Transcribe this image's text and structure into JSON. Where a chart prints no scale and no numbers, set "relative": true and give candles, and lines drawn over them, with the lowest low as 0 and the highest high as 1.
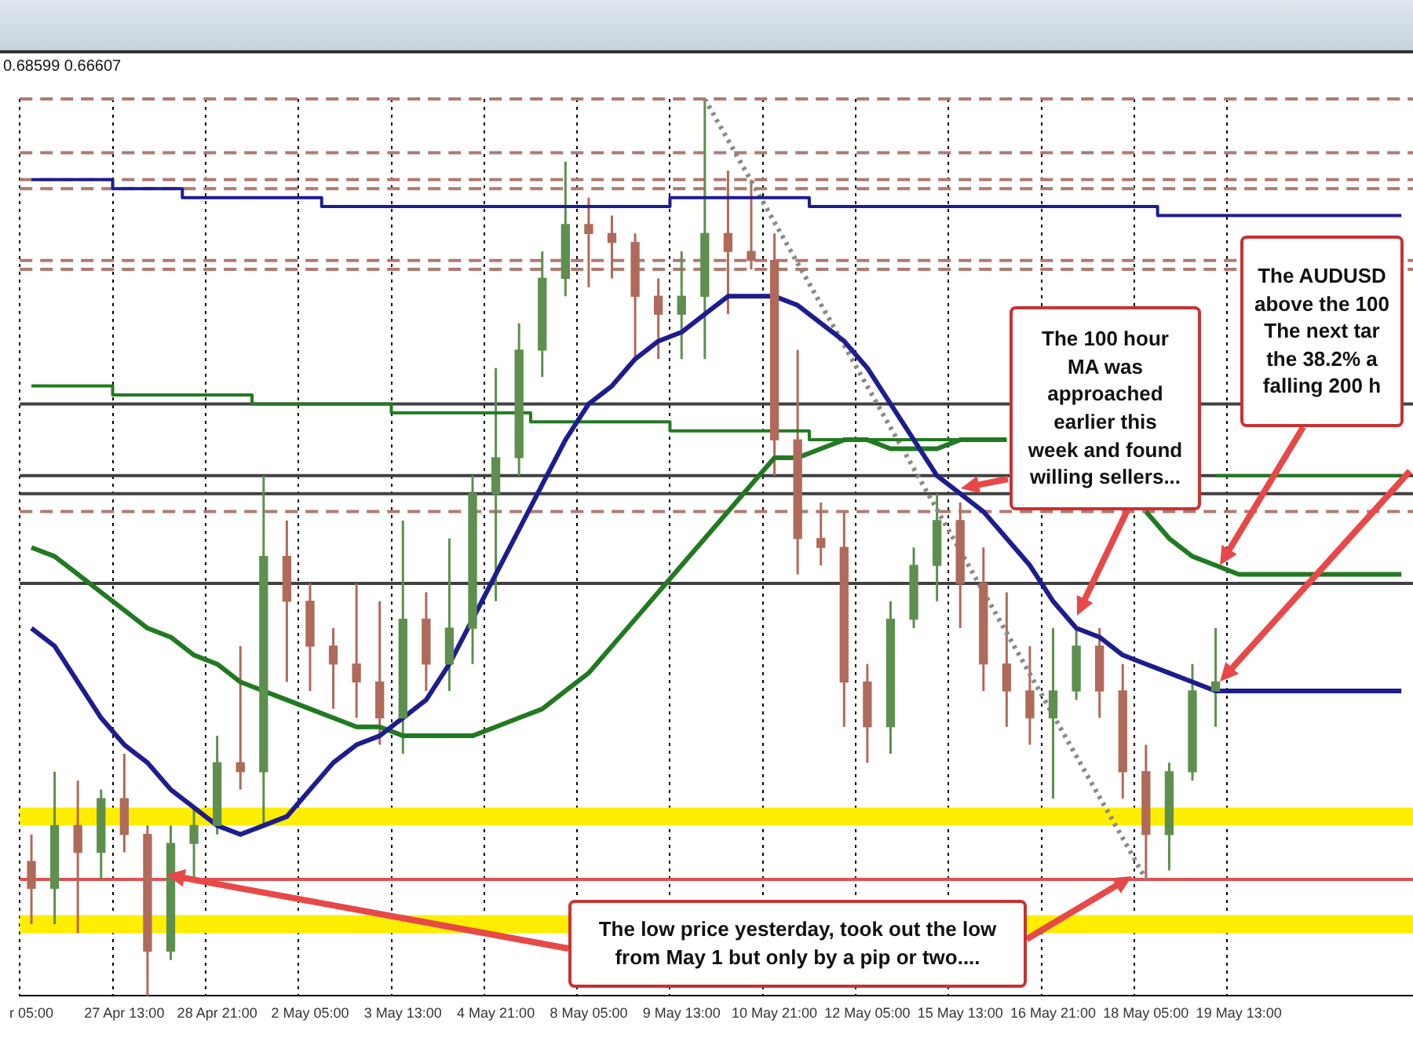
{
  "chart_data": {
    "type": "candlestick",
    "relative": true,
    "grid": "x",
    "legend": false,
    "categories": [
      "r 05:00",
      null,
      null,
      null,
      "27 Apr 13:00",
      null,
      null,
      null,
      "28 Apr 21:00",
      null,
      null,
      null,
      "2 May 05:00",
      null,
      null,
      null,
      "3 May 13:00",
      null,
      null,
      null,
      "4 May 21:00",
      null,
      null,
      null,
      "8 May 05:00",
      null,
      null,
      null,
      "9 May 13:00",
      null,
      null,
      null,
      "10 May 21:00",
      null,
      null,
      null,
      "12 May 05:00",
      null,
      null,
      null,
      "15 May 13:00",
      null,
      null,
      null,
      "16 May 21:00",
      null,
      null,
      null,
      "18 May 05:00",
      null,
      null,
      null,
      "19 May 13:00",
      null,
      null,
      null,
      null,
      null,
      null,
      null
    ],
    "ohlc": [
      [
        0.15,
        0.18,
        0.08,
        0.12
      ],
      [
        0.12,
        0.25,
        0.08,
        0.19
      ],
      [
        0.19,
        0.24,
        0.07,
        0.16
      ],
      [
        0.16,
        0.23,
        0.13,
        0.22
      ],
      [
        0.22,
        0.27,
        0.16,
        0.18
      ],
      [
        0.18,
        0.19,
        0,
        0.05
      ],
      [
        0.05,
        0.19,
        0.04,
        0.17
      ],
      [
        0.17,
        0.21,
        0.13,
        0.19
      ],
      [
        0.19,
        0.29,
        0.18,
        0.26
      ],
      [
        0.26,
        0.39,
        0.23,
        0.25
      ],
      [
        0.25,
        0.58,
        0.19,
        0.49
      ],
      [
        0.49,
        0.53,
        0.35,
        0.44
      ],
      [
        0.44,
        0.46,
        0.34,
        0.39
      ],
      [
        0.39,
        0.41,
        0.32,
        0.37
      ],
      [
        0.37,
        0.46,
        0.31,
        0.35
      ],
      [
        0.35,
        0.44,
        0.28,
        0.31
      ],
      [
        0.31,
        0.53,
        0.27,
        0.42
      ],
      [
        0.42,
        0.45,
        0.34,
        0.37
      ],
      [
        0.37,
        0.51,
        0.34,
        0.41
      ],
      [
        0.41,
        0.58,
        0.37,
        0.56
      ],
      [
        0.56,
        0.7,
        0.44,
        0.6
      ],
      [
        0.6,
        0.75,
        0.58,
        0.72
      ],
      [
        0.72,
        0.83,
        0.69,
        0.8
      ],
      [
        0.8,
        0.93,
        0.78,
        0.86
      ],
      [
        0.86,
        0.89,
        0.79,
        0.85
      ],
      [
        0.85,
        0.87,
        0.8,
        0.84
      ],
      [
        0.84,
        0.85,
        0.71,
        0.78
      ],
      [
        0.78,
        0.8,
        0.71,
        0.76
      ],
      [
        0.76,
        0.83,
        0.71,
        0.78
      ],
      [
        0.78,
        1,
        0.71,
        0.85
      ],
      [
        0.85,
        0.92,
        0.76,
        0.83
      ],
      [
        0.83,
        0.91,
        0.81,
        0.82
      ],
      [
        0.82,
        0.85,
        0.58,
        0.62
      ],
      [
        0.62,
        0.72,
        0.47,
        0.51
      ],
      [
        0.51,
        0.55,
        0.48,
        0.5
      ],
      [
        0.5,
        0.54,
        0.3,
        0.35
      ],
      [
        0.35,
        0.37,
        0.26,
        0.3
      ],
      [
        0.3,
        0.44,
        0.27,
        0.42
      ],
      [
        0.42,
        0.5,
        0.41,
        0.48
      ],
      [
        0.48,
        0.56,
        0.44,
        0.53
      ],
      [
        0.53,
        0.55,
        0.41,
        0.46
      ],
      [
        0.46,
        0.5,
        0.34,
        0.37
      ],
      [
        0.37,
        0.45,
        0.3,
        0.34
      ],
      [
        0.34,
        0.39,
        0.28,
        0.31
      ],
      [
        0.31,
        0.41,
        0.22,
        0.34
      ],
      [
        0.34,
        0.41,
        0.33,
        0.39
      ],
      [
        0.39,
        0.41,
        0.31,
        0.34
      ],
      [
        0.34,
        0.37,
        0.22,
        0.25
      ],
      [
        0.25,
        0.28,
        0.13,
        0.18
      ],
      [
        0.18,
        0.26,
        0.14,
        0.25
      ],
      [
        0.25,
        0.37,
        0.24,
        0.34
      ],
      [
        0.34,
        0.41,
        0.3,
        0.35
      ],
      null,
      null,
      null,
      null,
      null,
      null,
      null,
      null
    ],
    "colors": [
      "#b06a5a",
      "#5e8f4e",
      "#b06a5a",
      "#5e8f4e",
      "#b06a5a",
      "#b06a5a",
      "#5e8f4e",
      "#5e8f4e",
      "#5e8f4e",
      "#b06a5a",
      "#5e8f4e",
      "#b06a5a",
      "#b06a5a",
      "#b06a5a",
      "#b06a5a",
      "#b06a5a",
      "#5e8f4e",
      "#b06a5a",
      "#5e8f4e",
      "#5e8f4e",
      "#5e8f4e",
      "#5e8f4e",
      "#5e8f4e",
      "#5e8f4e",
      "#b06a5a",
      "#b06a5a",
      "#b06a5a",
      "#b06a5a",
      "#5e8f4e",
      "#5e8f4e",
      "#b06a5a",
      "#b06a5a",
      "#b06a5a",
      "#b06a5a",
      "#b06a5a",
      "#b06a5a",
      "#b06a5a",
      "#5e8f4e",
      "#5e8f4e",
      "#5e8f4e",
      "#b06a5a",
      "#b06a5a",
      "#b06a5a",
      "#b06a5a",
      "#5e8f4e",
      "#5e8f4e",
      "#b06a5a",
      "#b06a5a",
      "#b06a5a",
      "#5e8f4e",
      "#5e8f4e",
      "#5e8f4e",
      null,
      null,
      null,
      null,
      null,
      null,
      null,
      null
    ],
    "series": [
      {
        "type": "line",
        "color": "#1d1d8f",
        "values": [
          0.41,
          0.39,
          0.35,
          0.31,
          0.28,
          0.26,
          0.23,
          0.21,
          0.19,
          0.18,
          0.19,
          0.2,
          0.23,
          0.26,
          0.28,
          0.29,
          0.31,
          0.33,
          0.37,
          0.42,
          0.47,
          0.52,
          0.57,
          0.62,
          0.66,
          0.68,
          0.71,
          0.73,
          0.74,
          0.76,
          0.78,
          0.78,
          0.78,
          0.77,
          0.75,
          0.73,
          0.7,
          0.66,
          0.62,
          0.58,
          0.56,
          0.54,
          0.51,
          0.48,
          0.44,
          0.41,
          0.4,
          0.38,
          0.37,
          0.36,
          0.35,
          0.34,
          0.34,
          0.34,
          0.34,
          0.34,
          0.34,
          0.34,
          0.34,
          0.34
        ]
      },
      {
        "type": "line",
        "color": "#217a21",
        "values": [
          0.5,
          0.49,
          0.47,
          0.45,
          0.43,
          0.41,
          0.4,
          0.38,
          0.37,
          0.35,
          0.34,
          0.33,
          0.32,
          0.31,
          0.3,
          0.3,
          0.29,
          0.29,
          0.29,
          0.29,
          0.3,
          0.31,
          0.32,
          0.34,
          0.36,
          0.39,
          0.42,
          0.45,
          0.48,
          0.51,
          0.54,
          0.57,
          0.6,
          0.6,
          0.61,
          0.62,
          0.62,
          0.61,
          0.61,
          0.61,
          0.62,
          0.62,
          0.62,
          null,
          null,
          null,
          null,
          null,
          0.54,
          0.51,
          0.49,
          0.48,
          0.47,
          0.47,
          0.47,
          0.47,
          0.47,
          0.47,
          0.47,
          0.47
        ]
      },
      {
        "type": "step",
        "color": "#1d1d8f",
        "values": [
          0.91,
          0.91,
          0.91,
          0.91,
          0.9,
          0.9,
          0.9,
          0.89,
          0.89,
          0.89,
          0.89,
          0.89,
          0.89,
          0.88,
          0.88,
          0.88,
          0.88,
          0.88,
          0.88,
          0.88,
          0.88,
          0.88,
          0.88,
          0.88,
          0.88,
          0.88,
          0.88,
          0.88,
          0.89,
          0.89,
          0.89,
          0.89,
          0.89,
          0.89,
          0.88,
          0.88,
          0.88,
          0.88,
          0.88,
          0.88,
          0.88,
          0.88,
          0.88,
          0.88,
          0.88,
          0.88,
          0.88,
          0.88,
          0.88,
          0.87,
          0.87,
          0.87,
          0.87,
          0.87,
          0.87,
          0.87,
          0.87,
          0.87,
          0.87,
          0.87
        ]
      },
      {
        "type": "step",
        "color": "#217a21",
        "values": [
          0.68,
          0.68,
          0.68,
          0.68,
          0.67,
          0.67,
          0.67,
          0.67,
          0.67,
          0.67,
          0.66,
          0.66,
          0.66,
          0.66,
          0.66,
          0.66,
          0.65,
          0.65,
          0.65,
          0.65,
          0.65,
          0.65,
          0.64,
          0.64,
          0.64,
          0.64,
          0.64,
          0.64,
          0.63,
          0.63,
          0.63,
          0.63,
          0.63,
          0.63,
          0.62,
          0.62,
          0.62,
          0.62,
          0.62,
          0.62,
          0.62,
          0.62,
          0.62,
          null,
          null,
          null,
          null,
          null,
          null,
          null,
          null,
          0.58,
          0.58,
          0.58,
          0.58,
          0.58,
          0.58,
          0.58,
          0.58,
          0.58
        ]
      },
      {
        "type": "line",
        "color": "#8a8a8a",
        "line_style": "dotted",
        "values": [
          null,
          null,
          null,
          null,
          null,
          null,
          null,
          null,
          null,
          null,
          null,
          null,
          null,
          null,
          null,
          null,
          null,
          null,
          null,
          null,
          null,
          null,
          null,
          null,
          null,
          null,
          null,
          null,
          null,
          1,
          null,
          null,
          null,
          null,
          null,
          null,
          null,
          null,
          null,
          null,
          null,
          null,
          null,
          null,
          null,
          null,
          null,
          null,
          0.13,
          null,
          null,
          null,
          null,
          null,
          null,
          null,
          null,
          null,
          null,
          null
        ]
      }
    ],
    "ref_lines": [
      {
        "axis": "y",
        "value": 1,
        "color": "#b07a70",
        "line_style": "dashed"
      },
      {
        "axis": "y",
        "value": 0.94,
        "color": "#b07a70",
        "line_style": "dashed"
      },
      {
        "axis": "y",
        "value": 0.91,
        "color": "#b07a70",
        "line_style": "dashed"
      },
      {
        "axis": "y",
        "value": 0.9,
        "color": "#b07a70",
        "line_style": "dashed"
      },
      {
        "axis": "y",
        "value": 0.82,
        "color": "#b07a70",
        "line_style": "dashed"
      },
      {
        "axis": "y",
        "value": 0.81,
        "color": "#b07a70",
        "line_style": "dashed"
      },
      {
        "axis": "y",
        "value": 0.54,
        "color": "#b07a70",
        "line_style": "dashed"
      },
      {
        "axis": "y",
        "value": 0.66,
        "color": "#404040",
        "line_style": "solid"
      },
      {
        "axis": "y",
        "value": 0.58,
        "color": "#404040",
        "line_style": "solid"
      },
      {
        "axis": "y",
        "value": 0.56,
        "color": "#404040",
        "line_style": "solid"
      },
      {
        "axis": "y",
        "value": 0.46,
        "color": "#404040",
        "line_style": "solid"
      },
      {
        "axis": "y",
        "value": 0.13,
        "color": "#e05050",
        "line_style": "solid"
      }
    ],
    "bands": [
      {
        "axis": "y",
        "from": 0.19,
        "to": 0.21,
        "color": "#ffee00"
      },
      {
        "axis": "y",
        "from": 0.07,
        "to": 0.09,
        "color": "#ffee00"
      }
    ],
    "annotations": [
      "0.68599 0.66607",
      "The 100 hour\nMA was\napproached\nearlier this\nweek and found\nwilling sellers...",
      "The AUDUSD\nabove the 100\nThe next tar\nthe 38.2% a\nfalling 200 h",
      "The low price yesterday, took out the low\nfrom May 1 but only by a pip or two...."
    ]
  }
}
